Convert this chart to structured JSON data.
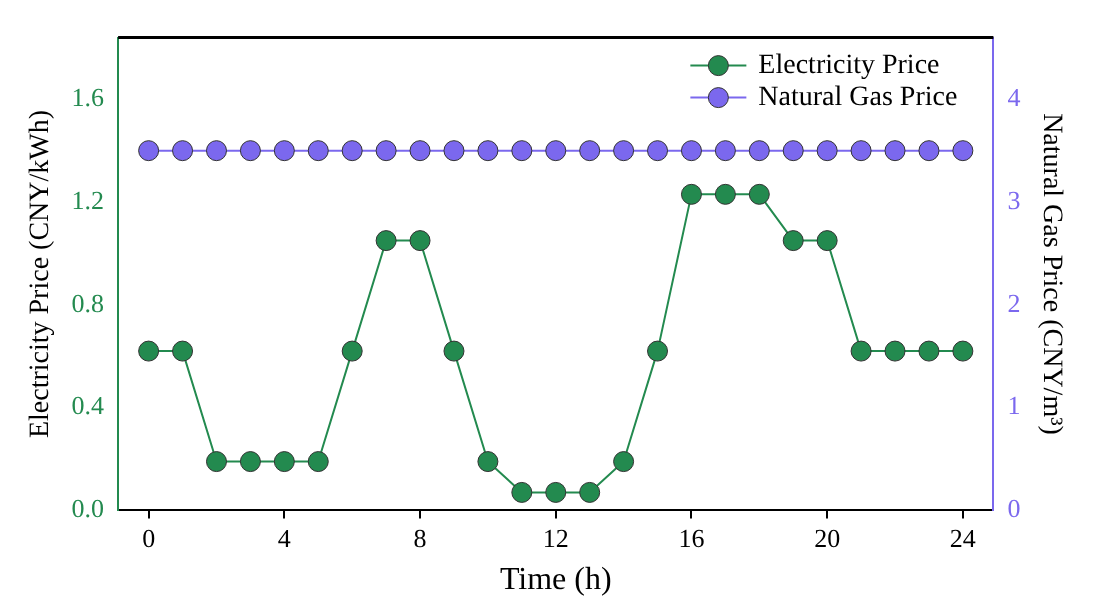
{
  "chart_data": {
    "type": "line",
    "xlabel": "Time (h)",
    "ylabel": "Electricity Price (CNY/kWh)",
    "y2label": "Natural Gas Price (CNY/m³)",
    "x": [
      0,
      1,
      2,
      3,
      4,
      5,
      6,
      7,
      8,
      9,
      10,
      11,
      12,
      13,
      14,
      15,
      16,
      17,
      18,
      19,
      20,
      21,
      22,
      23,
      24
    ],
    "series": [
      {
        "name": "Electricity Price",
        "color": "#238a4f",
        "values": [
          0.62,
          0.62,
          0.19,
          0.19,
          0.19,
          0.19,
          0.62,
          1.05,
          1.05,
          0.62,
          0.19,
          0.07,
          0.07,
          0.07,
          0.19,
          0.62,
          1.23,
          1.23,
          1.23,
          1.05,
          1.05,
          0.62,
          0.62,
          0.62,
          0.62
        ]
      },
      {
        "name": "Natural Gas Price",
        "color": "#7b68ee",
        "axis": "y2",
        "values": [
          3.5,
          3.5,
          3.5,
          3.5,
          3.5,
          3.5,
          3.5,
          3.5,
          3.5,
          3.5,
          3.5,
          3.5,
          3.5,
          3.5,
          3.5,
          3.5,
          3.5,
          3.5,
          3.5,
          3.5,
          3.5,
          3.5,
          3.5,
          3.5,
          3.5
        ]
      }
    ],
    "xlim": [
      -0.9,
      24.9
    ],
    "xticks": [
      0,
      4,
      8,
      12,
      16,
      20,
      24
    ],
    "ylim": [
      0,
      1.84
    ],
    "yticks": [
      {
        "value": 0,
        "label": "0.0"
      },
      0.4,
      0.8,
      1.2,
      1.6
    ],
    "y2lim": [
      0,
      4.6
    ],
    "y2ticks": [
      0,
      1,
      2,
      3,
      4
    ],
    "legend": "top right",
    "marker": "circle",
    "grid": false
  }
}
